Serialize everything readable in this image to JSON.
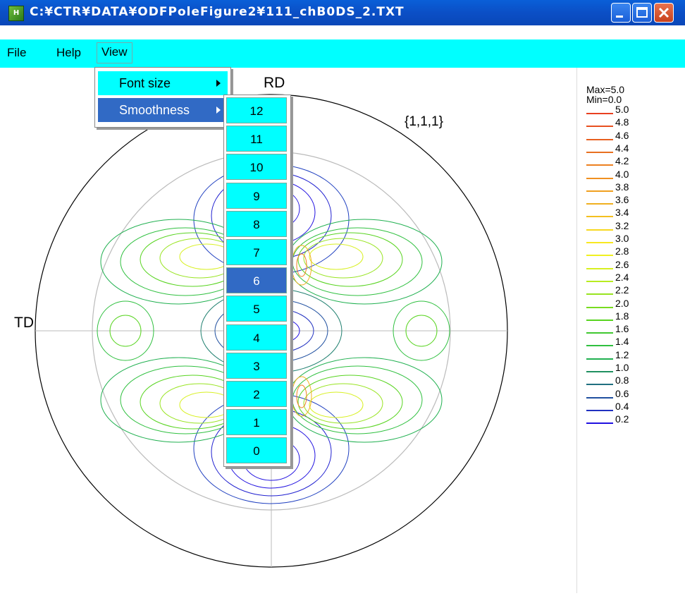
{
  "window": {
    "title": "C:¥CTR¥DATA¥ODFPoleFigure2¥111_chB0DS_2.TXT",
    "app_icon_text": "H"
  },
  "menubar": {
    "items": [
      {
        "label": "File"
      },
      {
        "label": "Help"
      },
      {
        "label": "View"
      }
    ]
  },
  "view_menu": {
    "items": [
      {
        "label": "Font size"
      },
      {
        "label": "Smoothness"
      }
    ]
  },
  "smoothness_submenu": {
    "items": [
      "12",
      "11",
      "10",
      "9",
      "8",
      "7",
      "6",
      "5",
      "4",
      "3",
      "2",
      "1",
      "0"
    ],
    "selected": "6"
  },
  "plot": {
    "rd_label": "RD",
    "td_label": "TD",
    "pole_label": "{1,1,1}"
  },
  "legend": {
    "max_label": "Max=5.0",
    "min_label": "Min=0.0",
    "levels": [
      {
        "value": "5.0",
        "color": "#e84020"
      },
      {
        "value": "4.8",
        "color": "#e85020"
      },
      {
        "value": "4.6",
        "color": "#e86020"
      },
      {
        "value": "4.4",
        "color": "#e87020"
      },
      {
        "value": "4.2",
        "color": "#ec8020"
      },
      {
        "value": "4.0",
        "color": "#f09020"
      },
      {
        "value": "3.8",
        "color": "#f0a020"
      },
      {
        "value": "3.6",
        "color": "#f0b020"
      },
      {
        "value": "3.4",
        "color": "#f4c020"
      },
      {
        "value": "3.2",
        "color": "#f8d820"
      },
      {
        "value": "3.0",
        "color": "#f8e820"
      },
      {
        "value": "2.8",
        "color": "#f0f020"
      },
      {
        "value": "2.6",
        "color": "#d8f020"
      },
      {
        "value": "2.4",
        "color": "#b8ec20"
      },
      {
        "value": "2.2",
        "color": "#98e420"
      },
      {
        "value": "2.0",
        "color": "#78dc20"
      },
      {
        "value": "1.8",
        "color": "#58d420"
      },
      {
        "value": "1.6",
        "color": "#40c830"
      },
      {
        "value": "1.4",
        "color": "#30c040"
      },
      {
        "value": "1.2",
        "color": "#20b050"
      },
      {
        "value": "1.0",
        "color": "#209060"
      },
      {
        "value": "0.8",
        "color": "#207080"
      },
      {
        "value": "0.6",
        "color": "#2050a0"
      },
      {
        "value": "0.4",
        "color": "#2030c0"
      },
      {
        "value": "0.2",
        "color": "#2010e0"
      }
    ]
  }
}
